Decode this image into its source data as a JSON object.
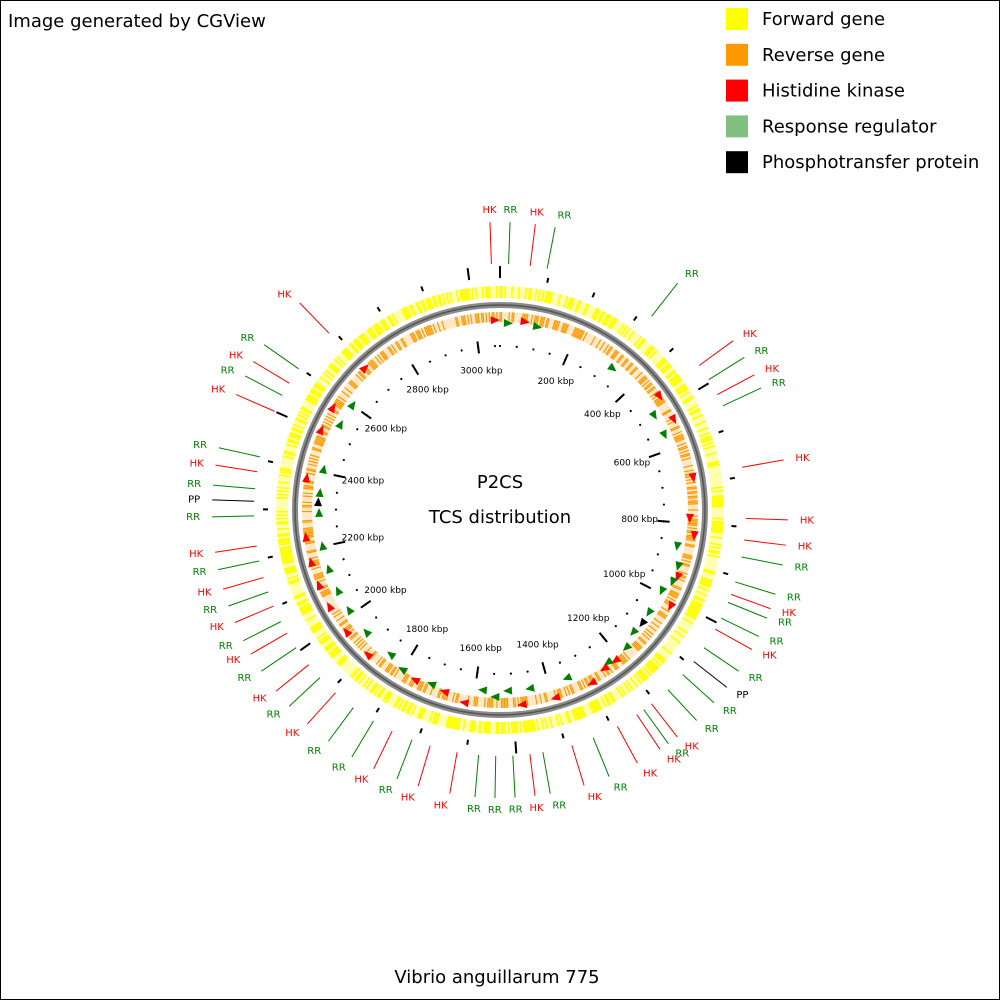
{
  "header": {
    "title": "Image generated by CGView"
  },
  "legend": [
    {
      "label": "Forward gene",
      "color": "#ffff00"
    },
    {
      "label": "Reverse gene",
      "color": "#ff9900"
    },
    {
      "label": "Histidine kinase",
      "color": "#ff0000"
    },
    {
      "label": "Response regulator",
      "color": "#80c080"
    },
    {
      "label": "Phosphotransfer protein",
      "color": "#000000"
    }
  ],
  "map": {
    "title": "P2CS",
    "subtitle": "TCS distribution",
    "genome_length_kbp": 3065,
    "ruler": [
      {
        "value": 200,
        "label": "200 kbp"
      },
      {
        "value": 400,
        "label": "400 kbp"
      },
      {
        "value": 600,
        "label": "600 kbp"
      },
      {
        "value": 800,
        "label": "800 kbp"
      },
      {
        "value": 1000,
        "label": "1000 kbp"
      },
      {
        "value": 1200,
        "label": "1200 kbp"
      },
      {
        "value": 1400,
        "label": "1400 kbp"
      },
      {
        "value": 1600,
        "label": "1600 kbp"
      },
      {
        "value": 1800,
        "label": "1800 kbp"
      },
      {
        "value": 2000,
        "label": "2000 kbp"
      },
      {
        "value": 2200,
        "label": "2200 kbp"
      },
      {
        "value": 2400,
        "label": "2400 kbp"
      },
      {
        "value": 2600,
        "label": "2600 kbp"
      },
      {
        "value": 2800,
        "label": "2800 kbp"
      },
      {
        "value": 3000,
        "label": "3000 kbp"
      }
    ],
    "feature_colors": {
      "HK": "#ff0000",
      "RR": "#008000",
      "PP": "#000000"
    },
    "features": [
      {
        "label": "HK",
        "kbp": 3048
      },
      {
        "label": "RR",
        "kbp": 17
      },
      {
        "label": "HK",
        "kbp": 60
      },
      {
        "label": "RR",
        "kbp": 94
      },
      {
        "label": "RR",
        "kbp": 324
      },
      {
        "label": "HK",
        "kbp": 460
      },
      {
        "label": "RR",
        "kbp": 494
      },
      {
        "label": "HK",
        "kbp": 528
      },
      {
        "label": "RR",
        "kbp": 553
      },
      {
        "label": "HK",
        "kbp": 681
      },
      {
        "label": "HK",
        "kbp": 783
      },
      {
        "label": "HK",
        "kbp": 826
      },
      {
        "label": "RR",
        "kbp": 860
      },
      {
        "label": "RR",
        "kbp": 911
      },
      {
        "label": "HK",
        "kbp": 937
      },
      {
        "label": "RR",
        "kbp": 954
      },
      {
        "label": "RR",
        "kbp": 988
      },
      {
        "label": "HK",
        "kbp": 1013
      },
      {
        "label": "RR",
        "kbp": 1056
      },
      {
        "label": "PP",
        "kbp": 1090
      },
      {
        "label": "RR",
        "kbp": 1124
      },
      {
        "label": "RR",
        "kbp": 1166
      },
      {
        "label": "HK",
        "kbp": 1209
      },
      {
        "label": "RR",
        "kbp": 1228
      },
      {
        "label": "HK",
        "kbp": 1245
      },
      {
        "label": "HK",
        "kbp": 1290
      },
      {
        "label": "RR",
        "kbp": 1343
      },
      {
        "label": "HK",
        "kbp": 1388
      },
      {
        "label": "RR",
        "kbp": 1447
      },
      {
        "label": "HK",
        "kbp": 1473
      },
      {
        "label": "RR",
        "kbp": 1507
      },
      {
        "label": "RR",
        "kbp": 1541
      },
      {
        "label": "RR",
        "kbp": 1575
      },
      {
        "label": "HK",
        "kbp": 1618
      },
      {
        "label": "HK",
        "kbp": 1673
      },
      {
        "label": "RR",
        "kbp": 1711
      },
      {
        "label": "HK",
        "kbp": 1754
      },
      {
        "label": "RR",
        "kbp": 1796
      },
      {
        "label": "RR",
        "kbp": 1844
      },
      {
        "label": "HK",
        "kbp": 1890
      },
      {
        "label": "RR",
        "kbp": 1933
      },
      {
        "label": "HK",
        "kbp": 1967
      },
      {
        "label": "RR",
        "kbp": 2009
      },
      {
        "label": "HK",
        "kbp": 2043
      },
      {
        "label": "RR",
        "kbp": 2069
      },
      {
        "label": "HK",
        "kbp": 2103
      },
      {
        "label": "RR",
        "kbp": 2133
      },
      {
        "label": "HK",
        "kbp": 2163
      },
      {
        "label": "RR",
        "kbp": 2197
      },
      {
        "label": "HK",
        "kbp": 2227
      },
      {
        "label": "RR",
        "kbp": 2287
      },
      {
        "label": "PP",
        "kbp": 2316
      },
      {
        "label": "RR",
        "kbp": 2341
      },
      {
        "label": "HK",
        "kbp": 2375
      },
      {
        "label": "RR",
        "kbp": 2405
      },
      {
        "label": "HK",
        "kbp": 2500
      },
      {
        "label": "RR",
        "kbp": 2535
      },
      {
        "label": "HK",
        "kbp": 2563
      },
      {
        "label": "RR",
        "kbp": 2597
      },
      {
        "label": "HK",
        "kbp": 2690
      }
    ]
  },
  "footer": {
    "caption": "Vibrio anguillarum 775"
  }
}
